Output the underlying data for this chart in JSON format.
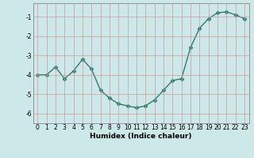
{
  "x": [
    0,
    1,
    2,
    3,
    4,
    5,
    6,
    7,
    8,
    9,
    10,
    11,
    12,
    13,
    14,
    15,
    16,
    17,
    18,
    19,
    20,
    21,
    22,
    23
  ],
  "y": [
    -4.0,
    -4.0,
    -3.6,
    -4.2,
    -3.8,
    -3.2,
    -3.7,
    -4.8,
    -5.2,
    -5.5,
    -5.6,
    -5.7,
    -5.6,
    -5.3,
    -4.8,
    -4.3,
    -4.2,
    -2.6,
    -1.6,
    -1.1,
    -0.8,
    -0.75,
    -0.9,
    -1.1
  ],
  "line_color": "#2e7d6e",
  "marker": "D",
  "markersize": 2.5,
  "linewidth": 1.0,
  "xlabel": "Humidex (Indice chaleur)",
  "xlim": [
    -0.5,
    23.5
  ],
  "ylim": [
    -6.5,
    -0.3
  ],
  "yticks": [
    -6,
    -5,
    -4,
    -3,
    -2,
    -1
  ],
  "xticks": [
    0,
    1,
    2,
    3,
    4,
    5,
    6,
    7,
    8,
    9,
    10,
    11,
    12,
    13,
    14,
    15,
    16,
    17,
    18,
    19,
    20,
    21,
    22,
    23
  ],
  "bg_color": "#cce8e8",
  "grid_color": "#cc9999",
  "tick_fontsize": 5.5,
  "label_fontsize": 6.5
}
